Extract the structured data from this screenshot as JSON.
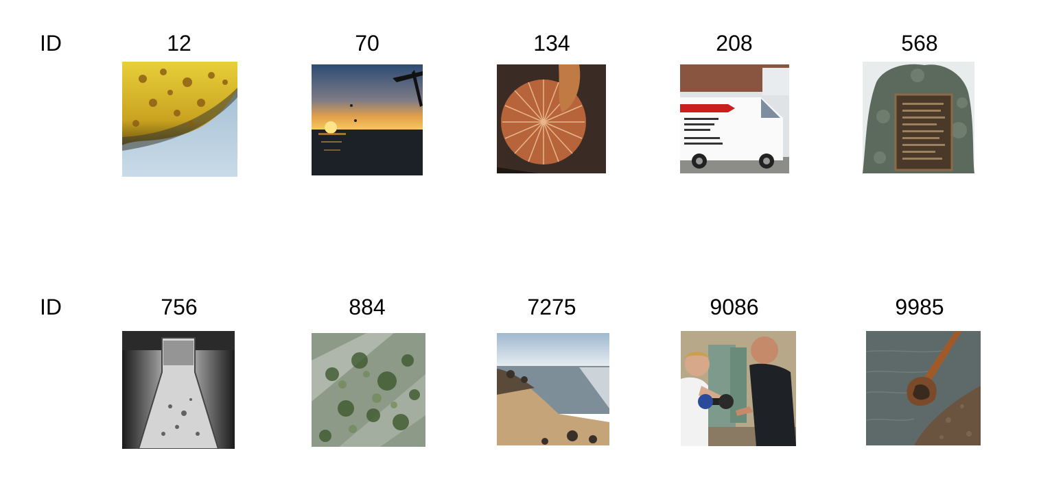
{
  "rows": [
    {
      "label": "ID",
      "items": [
        {
          "id": "12",
          "image": "banana-closeup"
        },
        {
          "id": "70",
          "image": "sunset-over-water"
        },
        {
          "id": "134",
          "image": "mushroom-gills"
        },
        {
          "id": "208",
          "image": "white-delivery-van"
        },
        {
          "id": "568",
          "image": "plaque-on-stone"
        }
      ]
    },
    {
      "label": "ID",
      "items": [
        {
          "id": "756",
          "image": "glass-vial"
        },
        {
          "id": "884",
          "image": "moss-texture"
        },
        {
          "id": "7275",
          "image": "beach-shoreline"
        },
        {
          "id": "9086",
          "image": "gym-dumbbell-training"
        },
        {
          "id": "9985",
          "image": "pipe-in-water"
        }
      ]
    }
  ]
}
